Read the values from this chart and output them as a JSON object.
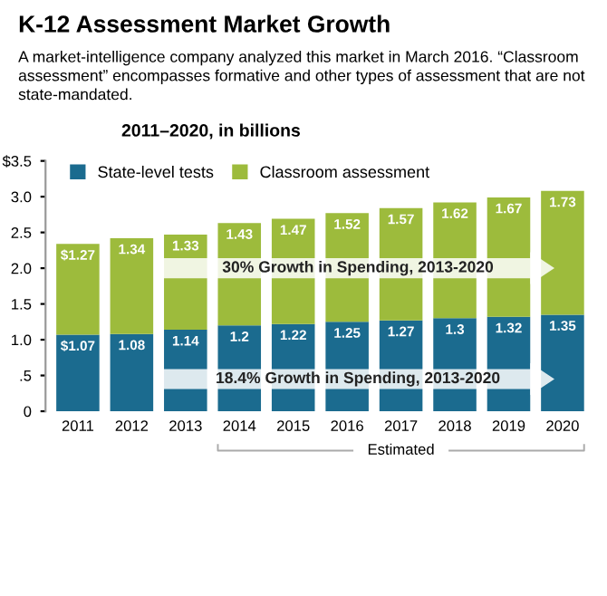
{
  "chart_data": {
    "type": "bar",
    "title": "K-12 Assessment Market Growth",
    "subtitle": "A market-intelligence company analyzed this market in March 2016. “Classroom assessment” encompasses formative and other types of assessment that are not state-mandated.",
    "ylabel": "2011–2020, in billions",
    "categories": [
      "2011",
      "2012",
      "2013",
      "2014",
      "2015",
      "2016",
      "2017",
      "2018",
      "2019",
      "2020"
    ],
    "stacked": true,
    "series": [
      {
        "name": "State-level tests",
        "color": "#1b6b8f",
        "values": [
          1.07,
          1.08,
          1.14,
          1.2,
          1.22,
          1.25,
          1.27,
          1.3,
          1.32,
          1.35
        ],
        "value_labels": [
          "$1.07",
          "1.08",
          "1.14",
          "1.2",
          "1.22",
          "1.25",
          "1.27",
          "1.3",
          "1.32",
          "1.35"
        ]
      },
      {
        "name": "Classroom assessment",
        "color": "#9dbb3c",
        "values": [
          1.27,
          1.34,
          1.33,
          1.43,
          1.47,
          1.52,
          1.57,
          1.62,
          1.67,
          1.73
        ],
        "value_labels": [
          "$1.27",
          "1.34",
          "1.33",
          "1.43",
          "1.47",
          "1.52",
          "1.57",
          "1.62",
          "1.67",
          "1.73"
        ]
      }
    ],
    "ylim": [
      0,
      3.5
    ],
    "yticks": [
      0,
      {
        "value": 0.5,
        "label": ".5"
      },
      {
        "value": 1,
        "label": "1.0"
      },
      {
        "value": 1.5,
        "label": "1.5"
      },
      {
        "value": 2,
        "label": "2.0"
      },
      {
        "value": 2.5,
        "label": "2.5"
      },
      {
        "value": 3,
        "label": "3.0"
      },
      {
        "value": 3.5,
        "label": "$3.5"
      }
    ],
    "legend": "top left",
    "annotations": [
      "30% Growth in Spending, 2013-2020",
      "18.4% Growth in Spending, 2013-2020",
      "Estimated"
    ]
  }
}
